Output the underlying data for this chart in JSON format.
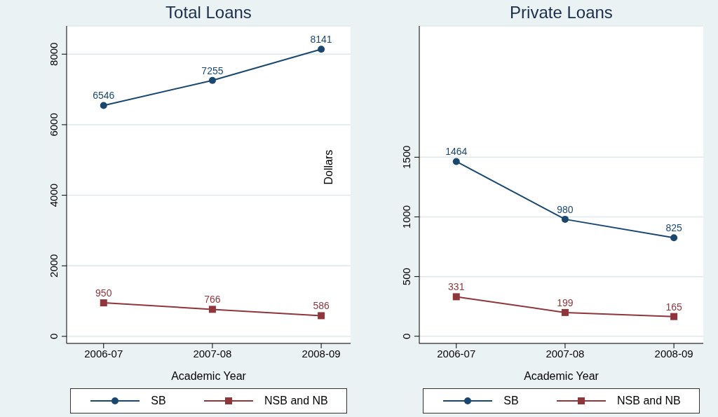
{
  "chart_data": [
    {
      "type": "line",
      "title": "Total Loans",
      "xlabel": "Academic Year",
      "categories": [
        "2006-07",
        "2007-08",
        "2008-09"
      ],
      "series": [
        {
          "name": "SB",
          "color": "#1a476f",
          "values": [
            6546,
            7255,
            8141
          ],
          "marker": "circle"
        },
        {
          "name": "NSB and NB",
          "color": "#90353b",
          "values": [
            950,
            766,
            586
          ],
          "marker": "square"
        }
      ],
      "ylim": [
        -200,
        8800
      ],
      "yticks": [
        0,
        2000,
        4000,
        6000,
        8000
      ],
      "grid": "y",
      "legend": "bottom",
      "data_labels": true
    },
    {
      "type": "line",
      "title": "Private Loans",
      "xlabel": "Academic Year",
      "ylabel": "Dollars",
      "categories": [
        "2006-07",
        "2007-08",
        "2008-09"
      ],
      "series": [
        {
          "name": "SB",
          "color": "#1a476f",
          "values": [
            1464,
            980,
            825
          ],
          "marker": "circle"
        },
        {
          "name": "NSB and NB",
          "color": "#90353b",
          "values": [
            331,
            199,
            165
          ],
          "marker": "square"
        }
      ],
      "ylim": [
        -60,
        2600
      ],
      "yticks": [
        0,
        500,
        1000,
        1500
      ],
      "grid": "y",
      "legend": "bottom",
      "data_labels": true
    }
  ]
}
